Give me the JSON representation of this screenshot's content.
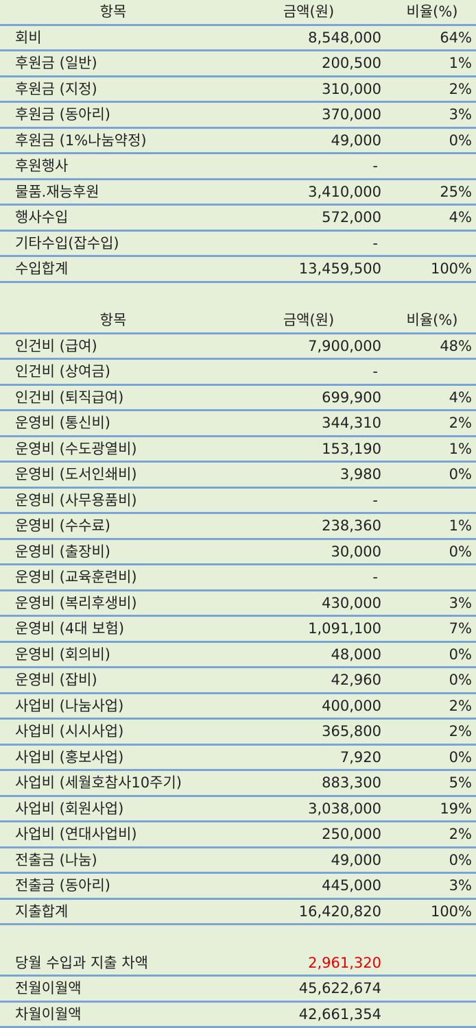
{
  "income": {
    "header": {
      "item": "항목",
      "amount": "금액(원)",
      "ratio": "비율(%)"
    },
    "rows": [
      {
        "item": "회비",
        "amount": "8,548,000",
        "ratio": "64%"
      },
      {
        "item": "후원금 (일반)",
        "amount": "200,500",
        "ratio": "1%"
      },
      {
        "item": "후원금 (지정)",
        "amount": "310,000",
        "ratio": "2%"
      },
      {
        "item": "후원금 (동아리)",
        "amount": "370,000",
        "ratio": "3%"
      },
      {
        "item": "후원금 (1%나눔약정)",
        "amount": "49,000",
        "ratio": "0%"
      },
      {
        "item": "후원행사",
        "amount": "-"
      },
      {
        "item": "물품.재능후원",
        "amount": "3,410,000",
        "ratio": "25%"
      },
      {
        "item": "행사수입",
        "amount": "572,000",
        "ratio": "4%"
      },
      {
        "item": "기타수입(잡수입)",
        "amount": "-"
      },
      {
        "item": "수입합계",
        "amount": "13,459,500",
        "ratio": "100%"
      }
    ]
  },
  "expense": {
    "header": {
      "item": "항목",
      "amount": "금액(원)",
      "ratio": "비율(%)"
    },
    "rows": [
      {
        "item": "인건비 (급여)",
        "amount": "7,900,000",
        "ratio": "48%"
      },
      {
        "item": "인건비 (상여금)",
        "amount": "-"
      },
      {
        "item": "인건비 (퇴직급여)",
        "amount": "699,900",
        "ratio": "4%"
      },
      {
        "item": "운영비 (통신비)",
        "amount": "344,310",
        "ratio": "2%"
      },
      {
        "item": "운영비 (수도광열비)",
        "amount": "153,190",
        "ratio": "1%"
      },
      {
        "item": "운영비 (도서인쇄비)",
        "amount": "3,980",
        "ratio": "0%"
      },
      {
        "item": "운영비 (사무용품비)",
        "amount": "-"
      },
      {
        "item": "운영비 (수수료)",
        "amount": "238,360",
        "ratio": "1%"
      },
      {
        "item": "운영비 (출장비)",
        "amount": "30,000",
        "ratio": "0%"
      },
      {
        "item": "운영비 (교육훈련비)",
        "amount": "-"
      },
      {
        "item": "운영비 (복리후생비)",
        "amount": "430,000",
        "ratio": "3%"
      },
      {
        "item": "운영비 (4대 보험)",
        "amount": "1,091,100",
        "ratio": "7%"
      },
      {
        "item": "운영비 (회의비)",
        "amount": "48,000",
        "ratio": "0%"
      },
      {
        "item": "운영비 (잡비)",
        "amount": "42,960",
        "ratio": "0%"
      },
      {
        "item": "사업비 (나눔사업)",
        "amount": "400,000",
        "ratio": "2%"
      },
      {
        "item": "사업비 (시시사업)",
        "amount": "365,800",
        "ratio": "2%"
      },
      {
        "item": "사업비 (홍보사업)",
        "amount": "7,920",
        "ratio": "0%"
      },
      {
        "item": "사업비 (세월호참사10주기)",
        "amount": "883,300",
        "ratio": "5%"
      },
      {
        "item": "사업비 (회원사업)",
        "amount": "3,038,000",
        "ratio": "19%"
      },
      {
        "item": "사업비 (연대사업비)",
        "amount": "250,000",
        "ratio": "2%"
      },
      {
        "item": "전출금 (나눔)",
        "amount": "49,000",
        "ratio": "0%"
      },
      {
        "item": "전출금 (동아리)",
        "amount": "445,000",
        "ratio": "3%"
      },
      {
        "item": "지출합계",
        "amount": "16,420,820",
        "ratio": "100%"
      }
    ]
  },
  "balance": {
    "rows": [
      {
        "item": "당월 수입과 지출 차액",
        "amount": "2,961,320",
        "highlight": true
      },
      {
        "item": "전월이월액",
        "amount": "45,622,674"
      },
      {
        "item": "차월이월액",
        "amount": "42,661,354"
      }
    ]
  }
}
